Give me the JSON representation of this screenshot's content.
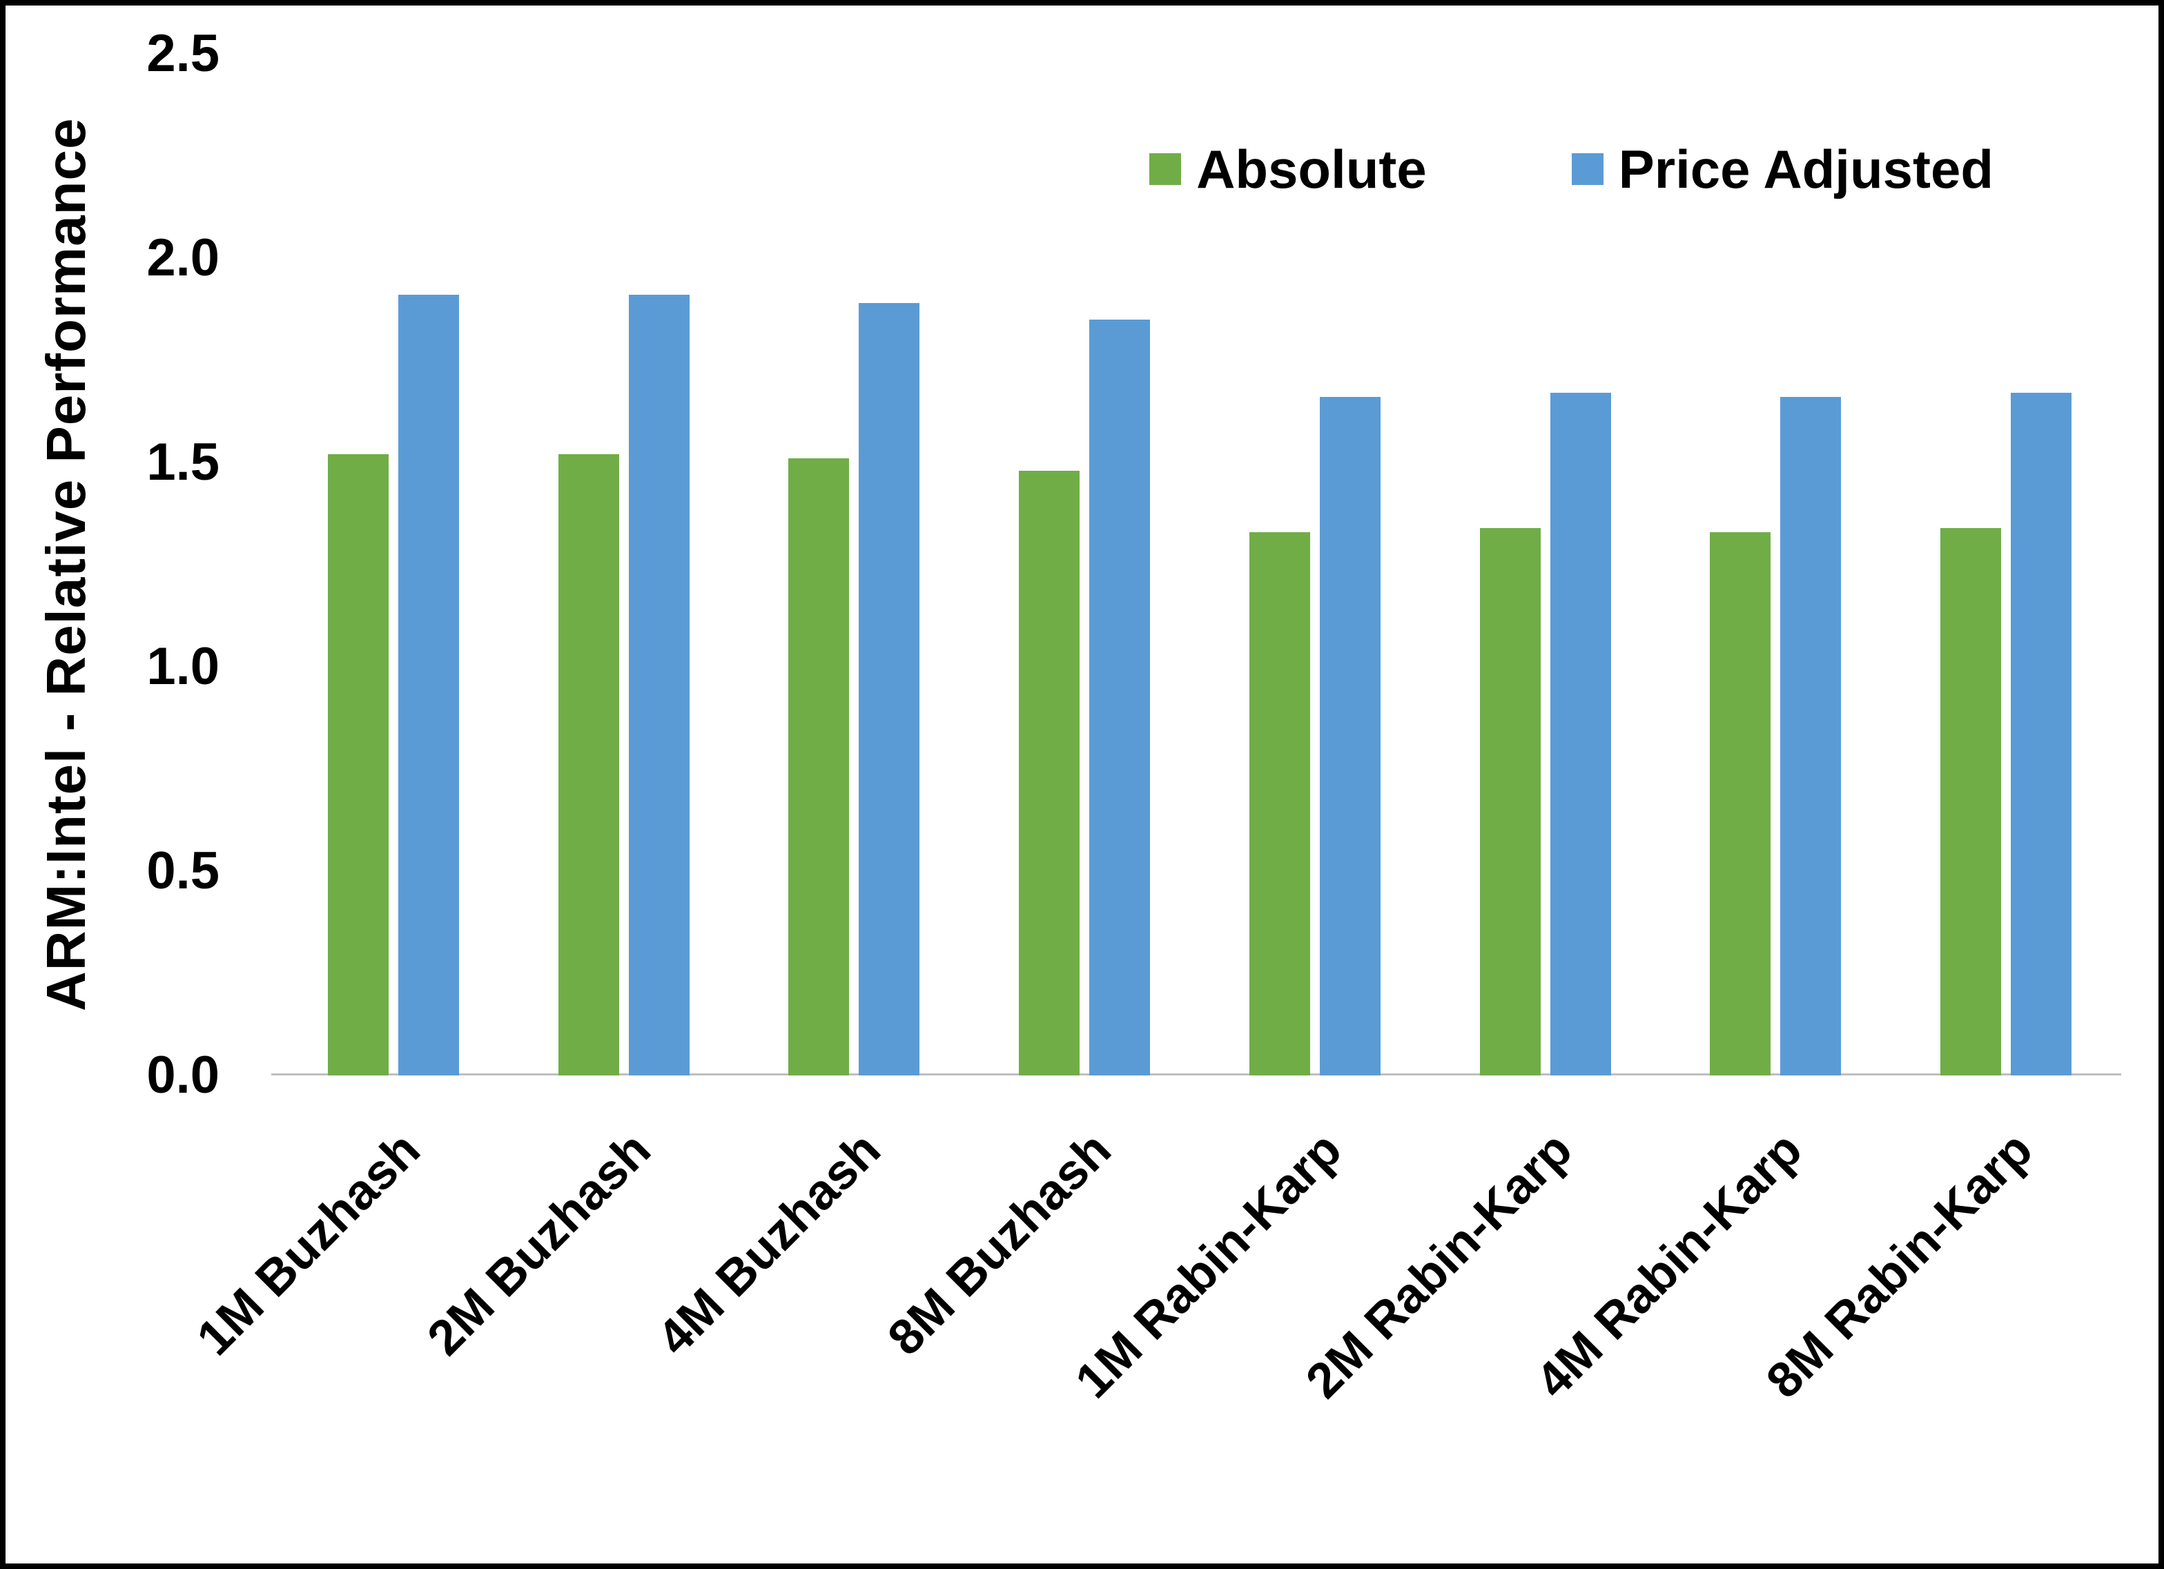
{
  "chart_data": {
    "type": "bar",
    "title": "",
    "xlabel": "",
    "ylabel": "ARM:Intel - Relative Performance",
    "ylim": [
      0,
      2.5
    ],
    "yticks": [
      "0.0",
      "0.5",
      "1.0",
      "1.5",
      "2.0",
      "2.5"
    ],
    "grid": false,
    "legend_position": "top-right",
    "categories": [
      "1M Buzhash",
      "2M Buzhash",
      "4M Buzhash",
      "8M Buzhash",
      "1M Rabin-Karp",
      "2M Rabin-Karp",
      "4M Rabin-Karp",
      "8M Rabin-Karp"
    ],
    "series": [
      {
        "name": "Absolute",
        "color": "#70AD47",
        "values": [
          1.52,
          1.52,
          1.51,
          1.48,
          1.33,
          1.34,
          1.33,
          1.34
        ]
      },
      {
        "name": "Price Adjusted",
        "color": "#5B9BD5",
        "values": [
          1.91,
          1.91,
          1.89,
          1.85,
          1.66,
          1.67,
          1.66,
          1.67
        ]
      }
    ]
  },
  "colors": {
    "axis_line": "#BFBFBF",
    "text": "#000000",
    "frame": "#000000",
    "background": "#FFFFFF"
  }
}
